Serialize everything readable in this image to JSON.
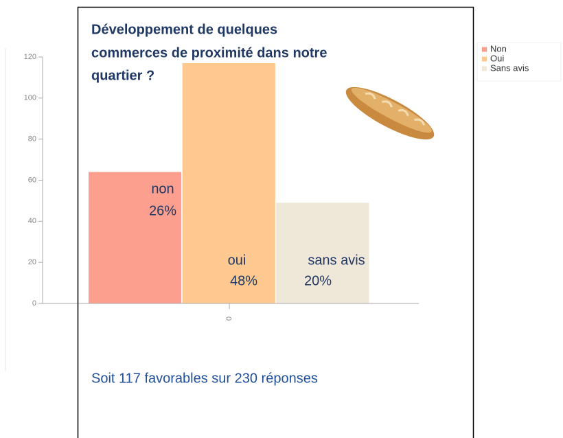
{
  "chart_data": {
    "type": "bar",
    "title": [
      "Développement de quelques",
      "commerces de proximité dans notre",
      "quartier ?"
    ],
    "categories": [
      "0"
    ],
    "series": [
      {
        "name": "Non",
        "color": "#fc9f8e",
        "values": [
          64
        ]
      },
      {
        "name": "Oui",
        "color": "#fdc990",
        "values": [
          117
        ]
      },
      {
        "name": "Sans avis",
        "color": "#efe7d8",
        "values": [
          49
        ]
      }
    ],
    "ylim": [
      0,
      120
    ],
    "yticks": [
      0,
      20,
      40,
      60,
      80,
      100,
      120
    ],
    "legend": "top-right",
    "annotations": [
      "non",
      "26%",
      "oui",
      "48%",
      "sans avis",
      "20%"
    ],
    "footer": "Soit 117 favorables sur 230 réponses"
  }
}
